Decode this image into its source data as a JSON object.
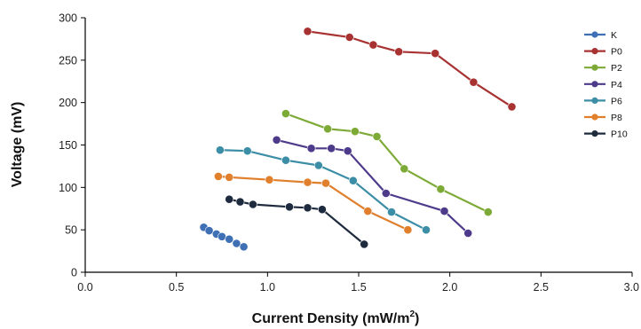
{
  "chart_data": {
    "type": "line",
    "xlabel": "Current Density (mW/m",
    "xlabel_sup": "2",
    "xlabel_close": ")",
    "ylabel": "Voltage (mV)",
    "xlim": [
      0,
      3
    ],
    "ylim": [
      0,
      300
    ],
    "x_ticks": [
      0.0,
      0.5,
      1.0,
      1.5,
      2.0,
      2.5,
      3.0
    ],
    "x_tick_labels": [
      "0.0",
      "0.5",
      "1.0",
      "1.5",
      "2.0",
      "2.5",
      "3.0"
    ],
    "y_ticks": [
      0,
      50,
      100,
      150,
      200,
      250,
      300
    ],
    "y_tick_labels": [
      "0",
      "50",
      "100",
      "150",
      "200",
      "250",
      "300"
    ],
    "grid": false,
    "legend_position": "right",
    "series": [
      {
        "name": "K",
        "color": "#3f6fb5",
        "x": [
          0.65,
          0.68,
          0.72,
          0.75,
          0.79,
          0.83,
          0.87
        ],
        "y": [
          53,
          49,
          45,
          42,
          39,
          34,
          30
        ]
      },
      {
        "name": "P0",
        "color": "#a83232",
        "x": [
          1.22,
          1.45,
          1.58,
          1.72,
          1.92,
          2.13,
          2.34
        ],
        "y": [
          284,
          277,
          268,
          260,
          258,
          224,
          195
        ]
      },
      {
        "name": "P2",
        "color": "#7daa37",
        "x": [
          1.1,
          1.33,
          1.48,
          1.6,
          1.75,
          1.95,
          2.21
        ],
        "y": [
          187,
          169,
          166,
          160,
          122,
          98,
          71
        ]
      },
      {
        "name": "P4",
        "color": "#4e3a8a",
        "x": [
          1.05,
          1.24,
          1.35,
          1.44,
          1.65,
          1.97,
          2.1
        ],
        "y": [
          156,
          146,
          146,
          143,
          93,
          72,
          46
        ]
      },
      {
        "name": "P6",
        "color": "#3b8ea6",
        "x": [
          0.74,
          0.89,
          1.1,
          1.28,
          1.47,
          1.68,
          1.87
        ],
        "y": [
          144,
          143,
          132,
          126,
          108,
          71,
          50
        ]
      },
      {
        "name": "P8",
        "color": "#e07f2c",
        "x": [
          0.73,
          0.79,
          1.01,
          1.22,
          1.32,
          1.55,
          1.77
        ],
        "y": [
          113,
          112,
          109,
          106,
          105,
          72,
          50
        ]
      },
      {
        "name": "P10",
        "color": "#1e2a3d",
        "x": [
          0.79,
          0.85,
          0.92,
          1.12,
          1.22,
          1.3,
          1.53
        ],
        "y": [
          86,
          83,
          80,
          77,
          76,
          74,
          33
        ]
      }
    ]
  }
}
